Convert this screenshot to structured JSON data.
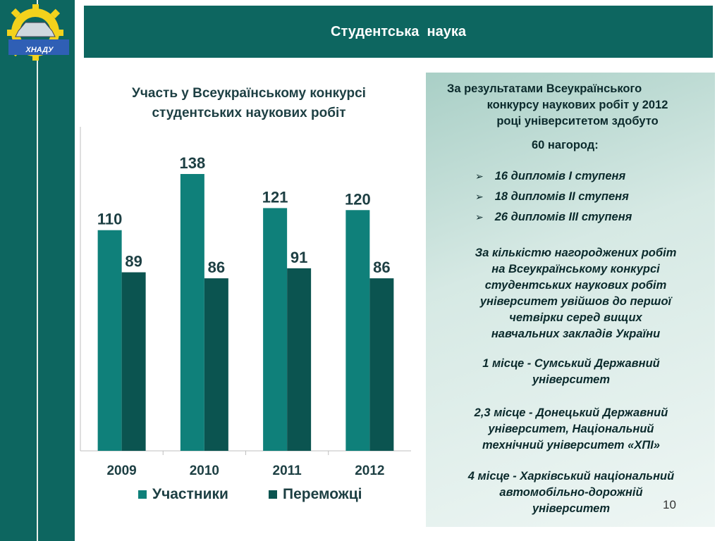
{
  "header": {
    "title": "Студентська  наука"
  },
  "logo": {
    "text": "ХНАДУ"
  },
  "chart_data": {
    "type": "bar",
    "title": "Участь у Всеукраїнському конкурсі студентських наукових робіт",
    "title_lines": [
      "Участь у Всеукраїнському конкурсі",
      "студентських наукових робіт"
    ],
    "categories": [
      "2009",
      "2010",
      "2011",
      "2012"
    ],
    "series": [
      {
        "name": "Участники",
        "values": [
          110,
          138,
          121,
          120
        ],
        "color": "#0f807a"
      },
      {
        "name": "Переможці",
        "values": [
          89,
          86,
          91,
          86
        ],
        "color": "#0b5450"
      }
    ],
    "ylim": [
      0,
      160
    ],
    "grid": false,
    "legend": "bottom"
  },
  "info": {
    "intro_lines": [
      "За результатами Всеукраїнського",
      "конкурсу наукових робіт у 2012",
      "році університетом здобуто"
    ],
    "total": "60 нагород:",
    "awards": [
      "16 дипломів I ступеня",
      "18 дипломів II ступеня",
      "26 дипломів III ступеня"
    ],
    "ranking_lines": [
      "За кількістю нагороджених робіт",
      "на Всеукраїнському конкурсі",
      "студентських наукових робіт",
      "університет увійшов до  першої",
      "четвірки  серед вищих",
      "навчальних закладів України"
    ],
    "place1_lines": [
      "1 місце  - Сумський Державний",
      "університет"
    ],
    "place23_lines": [
      "2,3 місце - Донецький Державний",
      "університет,  Національний",
      "технічний університет «ХПІ»"
    ],
    "place4_lines": [
      "4 місце - Харківський національний",
      "автомобільно-дорожній",
      "університет"
    ]
  },
  "page_number": "10"
}
